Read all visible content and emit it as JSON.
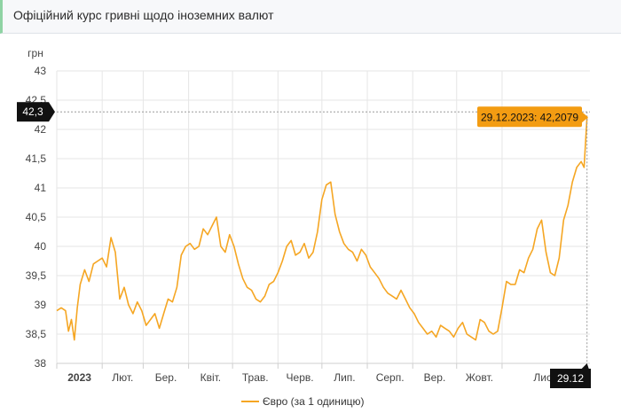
{
  "header": {
    "title": "Офіційний курс гривні щодо іноземних валют"
  },
  "colors": {
    "line": "#f5a623",
    "grid": "#e6e6e6",
    "badge_dark": "#111111",
    "badge_orange": "#f39c12"
  },
  "chart_data": {
    "type": "line",
    "ylabel": "грн",
    "ylim": [
      38,
      43
    ],
    "yticks": [
      "38",
      "38,5",
      "39",
      "39,5",
      "40",
      "40,5",
      "41",
      "41,5",
      "42",
      "42,5",
      "43"
    ],
    "ytick_values": [
      38,
      38.5,
      39,
      39.5,
      40,
      40.5,
      41,
      41.5,
      42,
      42.5,
      43
    ],
    "xlim": [
      "2023-01-01",
      "2023-12-31"
    ],
    "xticks": [
      {
        "label": "2023",
        "date": "2023-01-01",
        "bold": true
      },
      {
        "label": "Лют.",
        "date": "2023-02-01"
      },
      {
        "label": "Бер.",
        "date": "2023-03-01"
      },
      {
        "label": "Квіт.",
        "date": "2023-04-01"
      },
      {
        "label": "Трав.",
        "date": "2023-05-01"
      },
      {
        "label": "Черв.",
        "date": "2023-06-01"
      },
      {
        "label": "Лип.",
        "date": "2023-07-01"
      },
      {
        "label": "Серп.",
        "date": "2023-08-01"
      },
      {
        "label": "Вер.",
        "date": "2023-09-01"
      },
      {
        "label": "Жовт.",
        "date": "2023-10-01"
      },
      {
        "label": "Лист.",
        "date": "2023-11-01"
      }
    ],
    "grid": true,
    "legend": "bottom-center",
    "crosshair_y_label": "42,3",
    "crosshair_x_label": "29.12",
    "tooltip": "29.12.2023: 42,2079",
    "series": [
      {
        "name": "Євро (за 1 одиницю)",
        "x": [
          "2023-01-01",
          "2023-01-04",
          "2023-01-07",
          "2023-01-09",
          "2023-01-11",
          "2023-01-13",
          "2023-01-15",
          "2023-01-17",
          "2023-01-20",
          "2023-01-23",
          "2023-01-26",
          "2023-01-29",
          "2023-02-01",
          "2023-02-04",
          "2023-02-07",
          "2023-02-10",
          "2023-02-13",
          "2023-02-16",
          "2023-02-19",
          "2023-02-22",
          "2023-02-25",
          "2023-02-28",
          "2023-03-03",
          "2023-03-06",
          "2023-03-09",
          "2023-03-12",
          "2023-03-15",
          "2023-03-18",
          "2023-03-21",
          "2023-03-24",
          "2023-03-27",
          "2023-03-30",
          "2023-04-02",
          "2023-04-05",
          "2023-04-08",
          "2023-04-11",
          "2023-04-14",
          "2023-04-17",
          "2023-04-20",
          "2023-04-23",
          "2023-04-26",
          "2023-04-29",
          "2023-05-02",
          "2023-05-05",
          "2023-05-08",
          "2023-05-11",
          "2023-05-14",
          "2023-05-17",
          "2023-05-20",
          "2023-05-23",
          "2023-05-26",
          "2023-05-29",
          "2023-06-01",
          "2023-06-04",
          "2023-06-07",
          "2023-06-10",
          "2023-06-13",
          "2023-06-16",
          "2023-06-19",
          "2023-06-22",
          "2023-06-25",
          "2023-06-28",
          "2023-07-01",
          "2023-07-04",
          "2023-07-07",
          "2023-07-10",
          "2023-07-13",
          "2023-07-16",
          "2023-07-19",
          "2023-07-22",
          "2023-07-25",
          "2023-07-28",
          "2023-07-31",
          "2023-08-03",
          "2023-08-06",
          "2023-08-09",
          "2023-08-12",
          "2023-08-15",
          "2023-08-18",
          "2023-08-21",
          "2023-08-24",
          "2023-08-27",
          "2023-08-30",
          "2023-09-02",
          "2023-09-05",
          "2023-09-08",
          "2023-09-11",
          "2023-09-14",
          "2023-09-17",
          "2023-09-20",
          "2023-09-23",
          "2023-09-26",
          "2023-09-29",
          "2023-10-02",
          "2023-10-05",
          "2023-10-08",
          "2023-10-11",
          "2023-10-14",
          "2023-10-17",
          "2023-10-20",
          "2023-10-23",
          "2023-10-26",
          "2023-10-29",
          "2023-11-01",
          "2023-11-04",
          "2023-11-07",
          "2023-11-10",
          "2023-11-13",
          "2023-11-16",
          "2023-11-19",
          "2023-11-22",
          "2023-11-25",
          "2023-11-28",
          "2023-12-01",
          "2023-12-04",
          "2023-12-07",
          "2023-12-10",
          "2023-12-13",
          "2023-12-16",
          "2023-12-19",
          "2023-12-22",
          "2023-12-25",
          "2023-12-27",
          "2023-12-29"
        ],
        "y": [
          38.9,
          38.95,
          38.9,
          38.55,
          38.75,
          38.4,
          38.95,
          39.35,
          39.6,
          39.4,
          39.7,
          39.75,
          39.8,
          39.65,
          40.15,
          39.9,
          39.1,
          39.3,
          39.0,
          38.85,
          39.05,
          38.9,
          38.65,
          38.75,
          38.85,
          38.6,
          38.85,
          39.1,
          39.05,
          39.3,
          39.85,
          40.0,
          40.05,
          39.95,
          40.0,
          40.3,
          40.2,
          40.35,
          40.5,
          40.0,
          39.9,
          40.2,
          40.0,
          39.7,
          39.45,
          39.3,
          39.25,
          39.1,
          39.05,
          39.15,
          39.35,
          39.4,
          39.55,
          39.75,
          40.0,
          40.1,
          39.85,
          39.9,
          40.05,
          39.8,
          39.9,
          40.25,
          40.8,
          41.05,
          41.1,
          40.55,
          40.25,
          40.05,
          39.95,
          39.9,
          39.75,
          39.95,
          39.85,
          39.65,
          39.55,
          39.45,
          39.3,
          39.2,
          39.15,
          39.1,
          39.25,
          39.1,
          38.95,
          38.85,
          38.7,
          38.6,
          38.5,
          38.55,
          38.45,
          38.65,
          38.6,
          38.55,
          38.45,
          38.6,
          38.7,
          38.5,
          38.45,
          38.4,
          38.75,
          38.7,
          38.55,
          38.5,
          38.55,
          38.95,
          39.4,
          39.35,
          39.35,
          39.6,
          39.55,
          39.8,
          39.95,
          40.3,
          40.45,
          39.9,
          39.55,
          39.5,
          39.8,
          40.45,
          40.7,
          41.1,
          41.35,
          41.45,
          41.35,
          42.21
        ]
      }
    ]
  }
}
